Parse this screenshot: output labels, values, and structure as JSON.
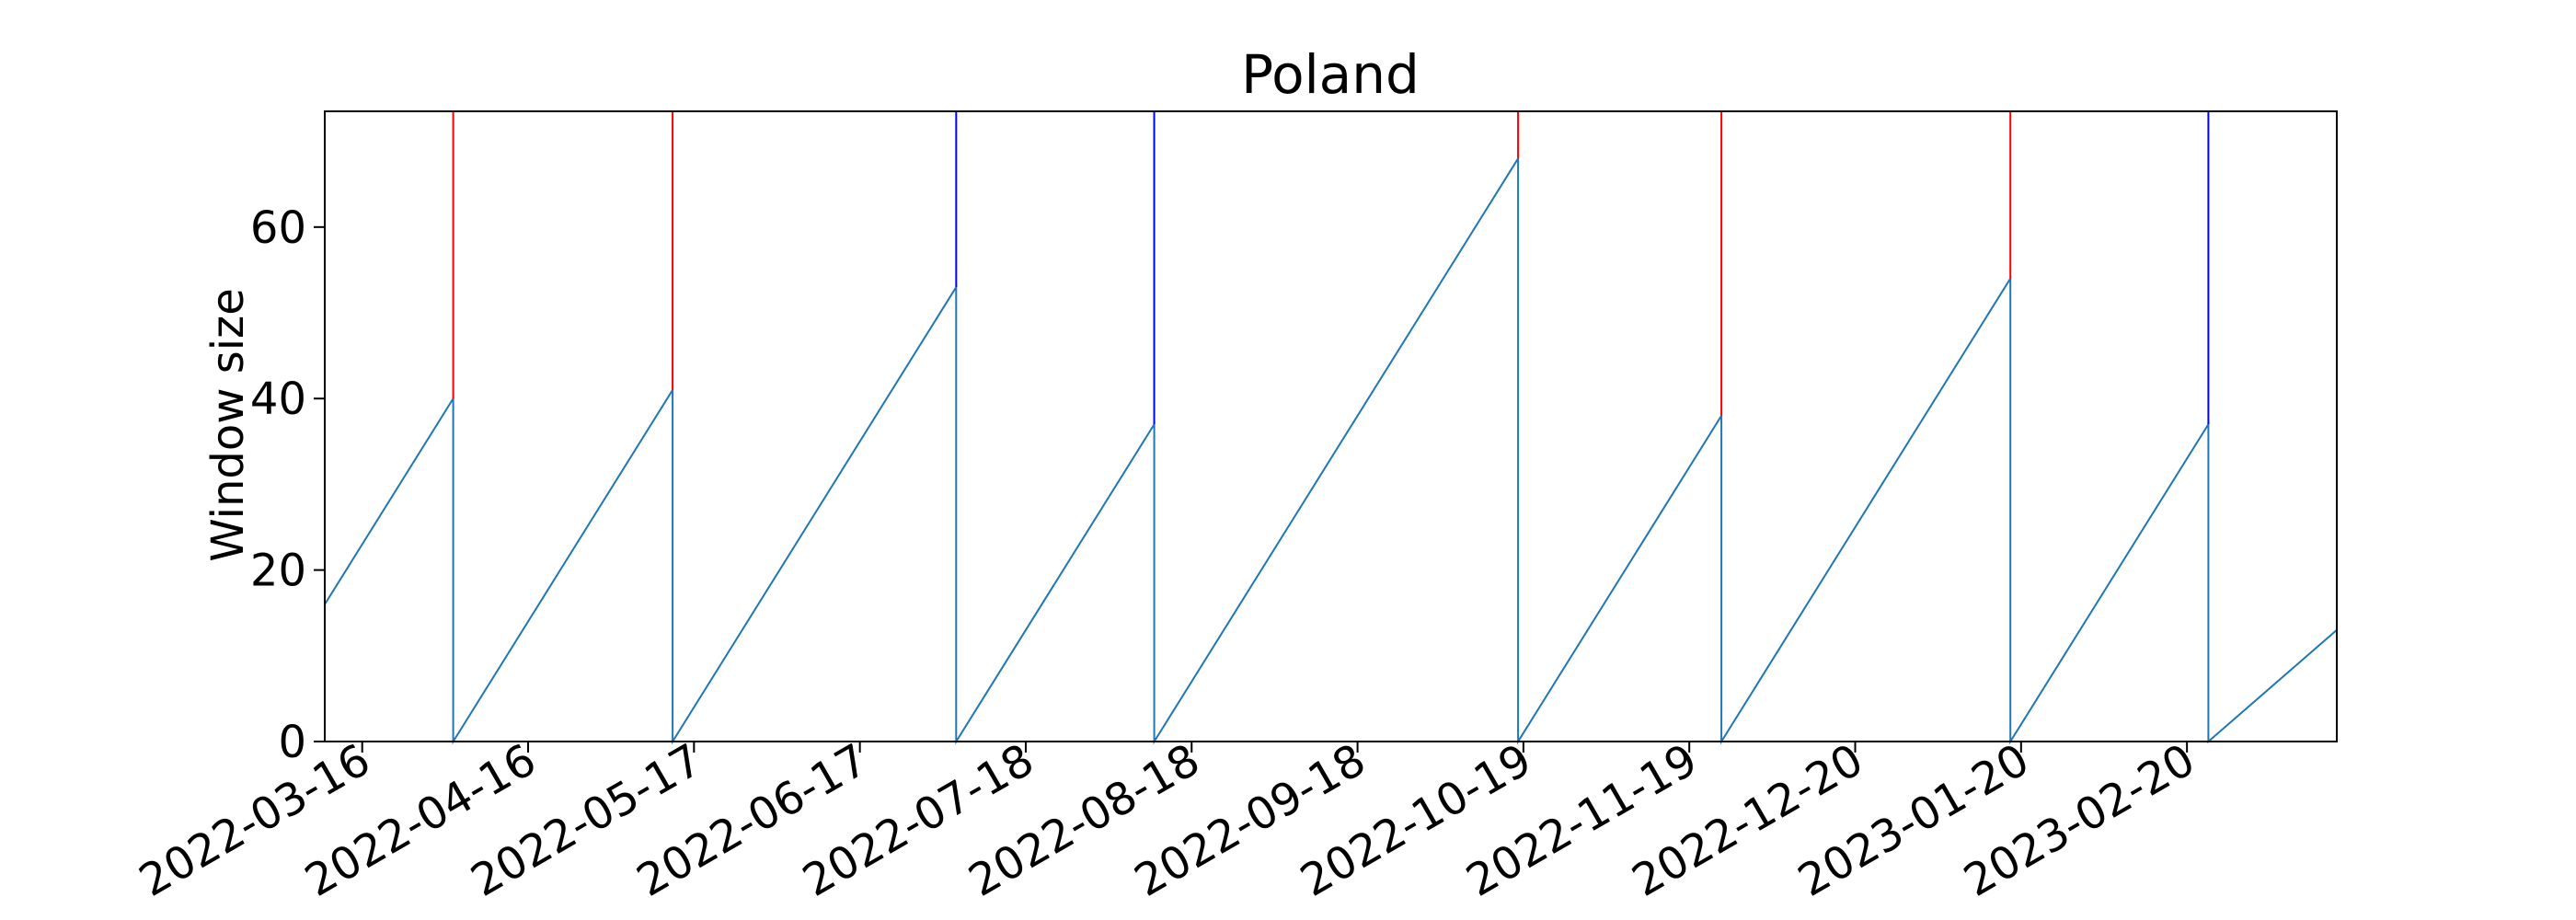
{
  "chart_data": {
    "type": "line",
    "title": "Poland",
    "xlabel": "",
    "ylabel": "Window size",
    "x_start": "2022-03-09",
    "xlim": [
      "2022-03-09",
      "2023-03-20"
    ],
    "ylim": [
      0,
      73.5
    ],
    "yticks": [
      0,
      20,
      40,
      60
    ],
    "xticks": [
      "2022-03-16",
      "2022-04-16",
      "2022-05-17",
      "2022-06-17",
      "2022-07-18",
      "2022-08-18",
      "2022-09-18",
      "2022-10-19",
      "2022-11-19",
      "2022-12-20",
      "2023-01-20",
      "2023-02-20"
    ],
    "grid": false,
    "series": [
      {
        "color": "#1f77b4",
        "points": [
          [
            "2022-03-09",
            16
          ],
          [
            "2022-04-02",
            40
          ],
          [
            "2022-04-02",
            0
          ],
          [
            "2022-05-13",
            41
          ],
          [
            "2022-05-13",
            0
          ],
          [
            "2022-07-05",
            53
          ],
          [
            "2022-07-05",
            0
          ],
          [
            "2022-08-11",
            37
          ],
          [
            "2022-08-11",
            0
          ],
          [
            "2022-10-18",
            68
          ],
          [
            "2022-10-18",
            0
          ],
          [
            "2022-11-25",
            38
          ],
          [
            "2022-11-25",
            0
          ],
          [
            "2023-01-18",
            54
          ],
          [
            "2023-01-18",
            0
          ],
          [
            "2023-02-24",
            37
          ],
          [
            "2023-02-24",
            0
          ],
          [
            "2023-03-20",
            13
          ]
        ]
      }
    ],
    "markers": [
      {
        "date": "2022-04-02",
        "from": 40,
        "color": "#ff0000"
      },
      {
        "date": "2022-05-13",
        "from": 41,
        "color": "#ff0000"
      },
      {
        "date": "2022-07-05",
        "from": 53,
        "color": "#0000ff"
      },
      {
        "date": "2022-08-11",
        "from": 37,
        "color": "#0000ff"
      },
      {
        "date": "2022-10-18",
        "from": 68,
        "color": "#ff0000"
      },
      {
        "date": "2022-11-25",
        "from": 38,
        "color": "#ff0000"
      },
      {
        "date": "2023-01-18",
        "from": 54,
        "color": "#ff0000"
      },
      {
        "date": "2023-02-24",
        "from": 37,
        "color": "#0000ff"
      }
    ]
  }
}
